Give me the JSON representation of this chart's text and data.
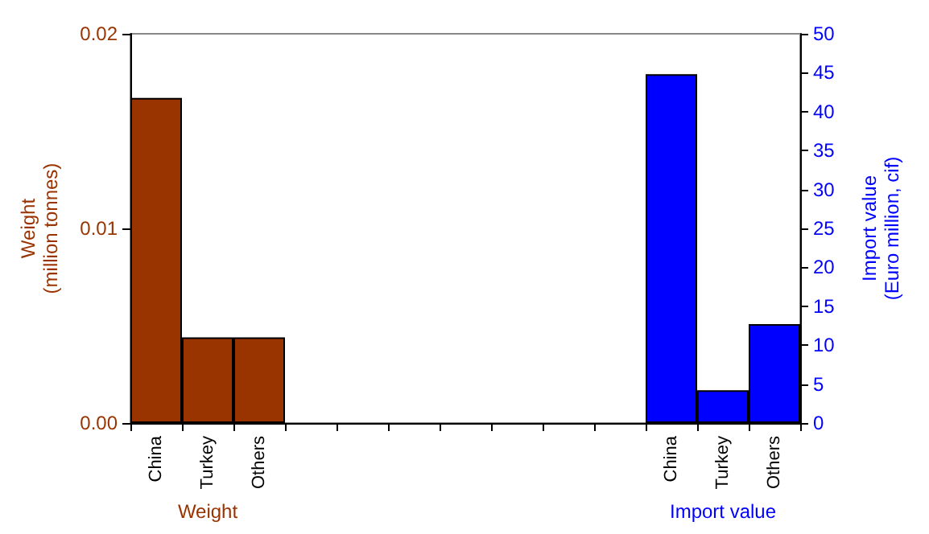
{
  "chart_data": {
    "type": "bar",
    "ylabel": "Weight\n(million tonnes)",
    "y2label": "Import value\n(Euro million, cif)",
    "categories": [
      "China",
      "Turkey",
      "Others",
      null,
      null,
      null,
      null,
      null,
      null,
      null,
      "China",
      "Turkey",
      "Others"
    ],
    "series": [
      {
        "name": "Weight",
        "color": "#993300",
        "values": [
          0.0167,
          0.0044,
          0.0044,
          null,
          null,
          null,
          null,
          null,
          null,
          null,
          null,
          null,
          null
        ]
      },
      {
        "name": "Import value",
        "color": "#0000ff",
        "axis": "y2",
        "values": [
          null,
          null,
          null,
          null,
          null,
          null,
          null,
          null,
          null,
          null,
          44.8,
          4.2,
          12.7
        ]
      }
    ],
    "ylim": [
      0,
      0.02
    ],
    "yticks": [
      {
        "value": 0,
        "label": "0.00"
      },
      {
        "value": 0.01,
        "label": "0.01"
      },
      {
        "value": 0.02,
        "label": "0.02"
      }
    ],
    "y2lim": [
      0,
      50
    ],
    "y2ticks": [
      0,
      5,
      10,
      15,
      20,
      25,
      30,
      35,
      40,
      45,
      50
    ],
    "grid": false,
    "legend": false
  }
}
